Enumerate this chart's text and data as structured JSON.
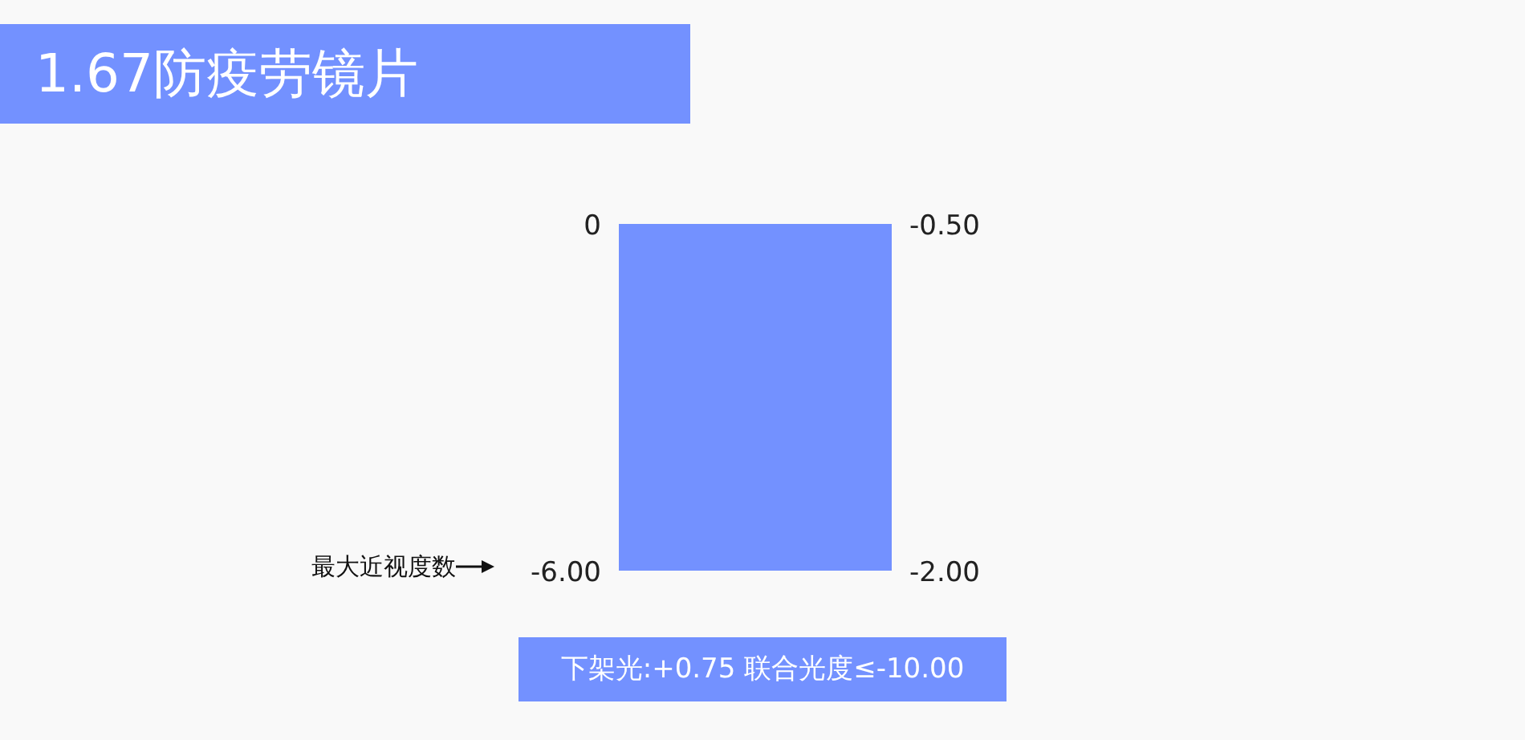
{
  "chart_data": {
    "type": "bar",
    "title": "1.67防疫劳镜片",
    "categories": [
      null
    ],
    "values": [
      -6
    ],
    "color": "#7391ff",
    "ylim": [
      -6,
      0
    ],
    "yticks": [
      0,
      {
        "value": -6,
        "label": "-6.00"
      }
    ],
    "y2lim": [
      -2,
      -0.5
    ],
    "y2ticks": [
      {
        "value": -0.5,
        "label": "-0.50"
      },
      {
        "value": -2,
        "label": "-2.00"
      }
    ],
    "annotations": [
      "最大近视度数",
      "下架光:+0.75 联合光度≤-10.00"
    ]
  }
}
